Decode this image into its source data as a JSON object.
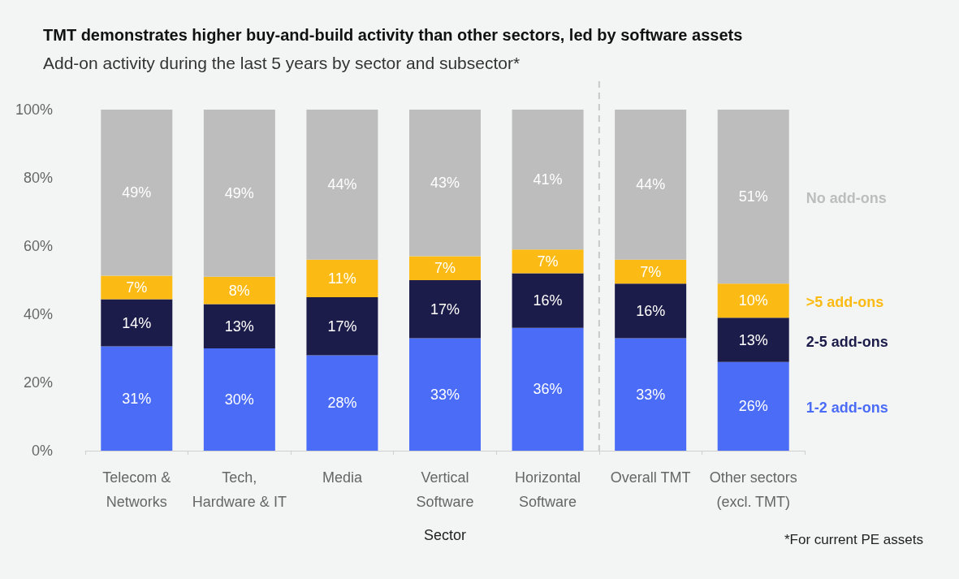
{
  "chart_data": {
    "type": "bar",
    "stacked": true,
    "title": "TMT demonstrates higher buy-and-build activity than other sectors, led by software assets",
    "subtitle": "Add-on activity during the last 5 years by sector and subsector*",
    "xlabel": "Sector",
    "annotations": [
      "*For current PE assets"
    ],
    "categories": [
      "Telecom &\nNetworks",
      "Tech,\nHardware & IT",
      "Media",
      "Vertical\nSoftware",
      "Horizontal\nSoftware",
      "Overall TMT",
      "Other sectors\n(excl. TMT)"
    ],
    "ylim": [
      0,
      100
    ],
    "yticks": [
      {
        "value": 0,
        "label": "0%"
      },
      {
        "value": 20,
        "label": "20%"
      },
      {
        "value": 40,
        "label": "40%"
      },
      {
        "value": 60,
        "label": "60%"
      },
      {
        "value": 80,
        "label": "80%"
      },
      {
        "value": 100,
        "label": "100%"
      }
    ],
    "legend": "right",
    "series": [
      {
        "name": "1-2 add-ons",
        "color": "#4a6cf7",
        "values": [
          30.6,
          30,
          28,
          33,
          36,
          33,
          26
        ],
        "value_labels": [
          "31%",
          "30%",
          "28%",
          "33%",
          "36%",
          "33%",
          "26%"
        ]
      },
      {
        "name": "2-5 add-ons",
        "color": "#1c1c4a",
        "values": [
          13.8,
          13,
          17,
          17,
          16,
          16,
          13
        ],
        "value_labels": [
          "14%",
          "13%",
          "17%",
          "17%",
          "16%",
          "16%",
          "13%"
        ]
      },
      {
        "name": ">5 add-ons",
        "color": "#fcbb14",
        "values": [
          6.9,
          8,
          11,
          7,
          7,
          7,
          10
        ],
        "value_labels": [
          "7%",
          "8%",
          "11%",
          "7%",
          "7%",
          "7%",
          "10%"
        ]
      },
      {
        "name": "No add-ons",
        "color": "#bdbdbd",
        "values": [
          48.7,
          49,
          44,
          43,
          41,
          44,
          51
        ],
        "value_labels": [
          "49%",
          "49%",
          "44%",
          "43%",
          "41%",
          "44%",
          "51%"
        ]
      }
    ]
  }
}
